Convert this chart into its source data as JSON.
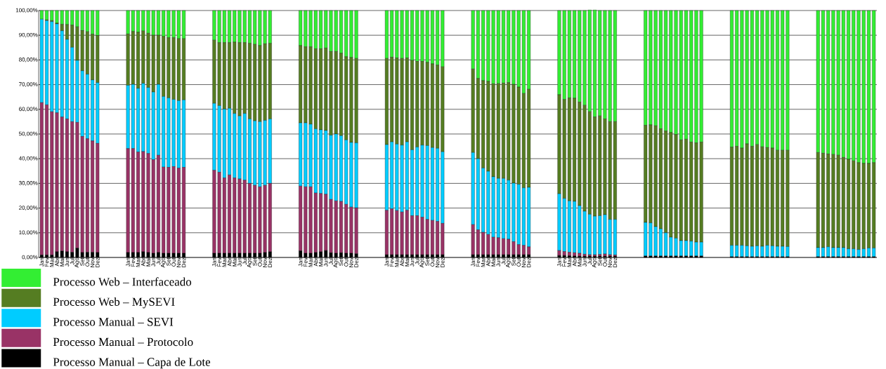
{
  "chart_data": {
    "type": "bar",
    "stacked": true,
    "grid": "y",
    "legend": "bottom left",
    "categories": [
      "Jan",
      "Fev",
      "Mar",
      "Abr",
      "Mai",
      "Jun",
      "Jul",
      "Ago",
      "Set",
      "Out",
      "Nov",
      "Dez",
      null,
      null,
      null,
      null,
      null,
      "Jan",
      "Fev",
      "Mar",
      "Abr",
      "Mai",
      "Jun",
      "Jul",
      "Ago",
      "Set",
      "Out",
      "Nov",
      "Dez",
      null,
      null,
      null,
      null,
      null,
      "Jan",
      "Fev",
      "Mar",
      "Abr",
      "Mai",
      "Jun",
      "Jul",
      "Ago",
      "Set",
      "Out",
      "Nov",
      "Dez",
      null,
      null,
      null,
      null,
      null,
      "Jan",
      "Fev",
      "Mar",
      "Abr",
      "Mai",
      "Jun",
      "Jul",
      "Ago",
      "Set",
      "Out",
      "Nov",
      "Dez",
      null,
      null,
      null,
      null,
      null,
      "Jan",
      "Fev",
      "Mar",
      "Abr",
      "Mai",
      "Jun",
      "Jul",
      "Ago",
      "Set",
      "Out",
      "Nov",
      "Dez",
      null,
      null,
      null,
      null,
      null,
      "Jan",
      "Fev",
      "Mar",
      "Abr",
      "Mai",
      "Jun",
      "Jul",
      "Ago",
      "Set",
      "Out",
      "Nov",
      "Dez",
      null,
      null,
      null,
      null,
      null,
      "Jan",
      "Fev",
      "Mar",
      "Abr",
      "Mai",
      "Jun",
      "Jul",
      "Ago",
      "Set",
      "Out",
      "Nov",
      "Dez",
      null,
      null,
      null,
      null,
      null,
      null,
      null,
      null,
      null,
      null,
      null,
      null,
      null,
      null,
      null,
      null,
      null,
      null,
      null,
      null,
      null,
      null,
      null,
      null,
      null,
      null,
      null,
      null,
      null,
      null,
      null,
      null,
      null,
      null,
      null,
      null,
      null,
      null,
      null,
      null,
      null,
      null,
      null,
      null,
      null,
      null,
      null,
      null,
      null,
      null,
      null
    ],
    "ylim": [
      0,
      100
    ],
    "yticks": [
      {
        "value": 0,
        "label": "0,00%"
      },
      {
        "value": 10,
        "label": "10,00%"
      },
      {
        "value": 20,
        "label": "20,00%"
      },
      {
        "value": 30,
        "label": "30,00%"
      },
      {
        "value": 40,
        "label": "40,00%"
      },
      {
        "value": 50,
        "label": "50,00%"
      },
      {
        "value": 60,
        "label": "60,00%"
      },
      {
        "value": 70,
        "label": "70,00%"
      },
      {
        "value": 80,
        "label": "80,00%"
      },
      {
        "value": 90,
        "label": "90,00%"
      },
      {
        "value": 100,
        "label": "100,00%"
      }
    ],
    "series": [
      {
        "name": "Processo Manual – Capa de Lote",
        "color": "#000000",
        "values": [
          1,
          1,
          1,
          2.3,
          2.6,
          2.3,
          2.1,
          3.8,
          2,
          2.1,
          2.1,
          2,
          null,
          null,
          null,
          null,
          null,
          2,
          2,
          2,
          2.3,
          2,
          1.7,
          2,
          1.7,
          1.7,
          1.7,
          1.7,
          1.7,
          null,
          null,
          null,
          null,
          null,
          1.7,
          1.7,
          1.7,
          1.7,
          1.7,
          1.7,
          1.7,
          1.7,
          1.7,
          1.7,
          2,
          2.3,
          null,
          null,
          null,
          null,
          null,
          2.7,
          1.7,
          1.7,
          2,
          2.3,
          2.8,
          1.9,
          1.7,
          1.9,
          1.7,
          1.7,
          1.5,
          null,
          null,
          null,
          null,
          null,
          1.1,
          1.1,
          1.1,
          1.1,
          1.1,
          1.1,
          1.1,
          1.1,
          1.1,
          1.1,
          1.1,
          1.1,
          null,
          null,
          null,
          null,
          null,
          1.1,
          1.1,
          1.1,
          1.1,
          1.1,
          1.1,
          1.1,
          1.1,
          1.1,
          1.1,
          1.1,
          1.1,
          null,
          null,
          null,
          null,
          null,
          0.8,
          0.8,
          0.7,
          0.6,
          0.5,
          0.5,
          0.5,
          0.5,
          0.5,
          0.5,
          0.5,
          0.5,
          null,
          null,
          null,
          null,
          null,
          0.6,
          0.6,
          0.6,
          0.6,
          0.6,
          0.6,
          0.6,
          0.6,
          0.6,
          0.6,
          0.6,
          0.6,
          null,
          null,
          null,
          null,
          null,
          0.3,
          0.3,
          0.3,
          0.3,
          0.3,
          0.3,
          0.3,
          0.3,
          0.3,
          0.3,
          0.3,
          0.3,
          null,
          null,
          null,
          null,
          null,
          0.3,
          0.3,
          0.3,
          0.3,
          0.3,
          0.3,
          0.3,
          0.3,
          0.3,
          0.3,
          0.3,
          0.3
        ]
      },
      {
        "name": "Processo Manual – Protocolo",
        "color": "#993366",
        "values": [
          61.7,
          60.8,
          58,
          56.3,
          54.3,
          53.8,
          52.9,
          50.9,
          47,
          46,
          45.1,
          44.2,
          null,
          null,
          null,
          null,
          null,
          42.1,
          42.1,
          40.7,
          40.6,
          40.1,
          37.9,
          39.4,
          34.9,
          34.8,
          35.1,
          34.5,
          34.8,
          null,
          null,
          null,
          null,
          null,
          33.6,
          32.8,
          30.5,
          31.7,
          30.5,
          30.1,
          29.6,
          28.3,
          27.5,
          26.9,
          27.2,
          27.7,
          null,
          null,
          null,
          null,
          null,
          26.2,
          26.9,
          26.9,
          24.1,
          23.6,
          22.8,
          21.6,
          21.2,
          20.8,
          19.8,
          18.7,
          18.6,
          null,
          null,
          null,
          null,
          null,
          18,
          18.6,
          17.9,
          17.3,
          18,
          15.8,
          15.8,
          15.2,
          14.3,
          13.9,
          13.5,
          12.7,
          null,
          null,
          null,
          null,
          null,
          12.2,
          10.1,
          9.1,
          8.2,
          7.1,
          6.9,
          6.5,
          6.3,
          5.3,
          4.1,
          3.8,
          3.2,
          null,
          null,
          null,
          null,
          null,
          2,
          1.6,
          1.4,
          1.3,
          1.2,
          0.8,
          0.6,
          0.6,
          0.7,
          0.9,
          0.6,
          0.5,
          null,
          null,
          null,
          null,
          null,
          0,
          0,
          0,
          0,
          0,
          0,
          0,
          0,
          0,
          0,
          0,
          0,
          null,
          null,
          null,
          null,
          null,
          0,
          0,
          0,
          0,
          0,
          0,
          0,
          0,
          0,
          0,
          0,
          0,
          null,
          null,
          null,
          null,
          null,
          0,
          0,
          0,
          0,
          0,
          0,
          0,
          0,
          0,
          0,
          0,
          0
        ]
      },
      {
        "name": "Processo Manual – SEVI",
        "color": "#00ccff",
        "values": [
          33.8,
          34.1,
          36.5,
          36,
          34.9,
          32.2,
          30.1,
          25.1,
          26.6,
          26.1,
          24.7,
          24.6,
          null,
          null,
          null,
          null,
          null,
          25.6,
          26,
          25.8,
          27.6,
          26.7,
          27.4,
          28.7,
          28.6,
          28.1,
          27.2,
          27.3,
          27.3,
          null,
          null,
          null,
          null,
          null,
          27.1,
          27,
          27.9,
          27,
          26.1,
          25.5,
          27,
          26.1,
          26.1,
          26.4,
          26.3,
          26.1,
          null,
          null,
          null,
          null,
          null,
          25.6,
          25.9,
          25.4,
          26,
          25.8,
          25.8,
          26,
          27.1,
          26.6,
          26.1,
          26.2,
          26.3,
          null,
          null,
          null,
          null,
          null,
          26.6,
          27.1,
          26.9,
          27.1,
          27.7,
          26.7,
          27.8,
          29.2,
          29.9,
          29.5,
          29.6,
          29,
          null,
          null,
          null,
          null,
          null,
          29.2,
          28.8,
          26,
          25.6,
          24.5,
          24,
          24.4,
          23.9,
          23.7,
          24.4,
          23.3,
          24.1,
          null,
          null,
          null,
          null,
          null,
          23,
          21.5,
          20.8,
          20.8,
          19.3,
          17.4,
          16.4,
          15.6,
          15.7,
          15.9,
          14.3,
          14.4,
          null,
          null,
          null,
          null,
          null,
          13.6,
          13.4,
          11.9,
          11,
          9.4,
          7.6,
          7.2,
          6.2,
          6.2,
          6,
          5.6,
          5.6,
          null,
          null,
          null,
          null,
          null,
          4.6,
          4.6,
          4.6,
          4.4,
          4.2,
          4.4,
          4.2,
          4.6,
          4.4,
          4.2,
          4.2,
          4.1,
          null,
          null,
          null,
          null,
          null,
          3.7,
          3.7,
          4,
          3.7,
          3.7,
          3.7,
          3.2,
          3.2,
          2.9,
          3.2,
          3.5,
          3.5
        ]
      },
      {
        "name": "Processo Web – MySEVI",
        "color": "#557d22",
        "values": [
          0,
          0.3,
          0.4,
          0.3,
          2.6,
          6,
          9,
          13.6,
          16.3,
          17.2,
          18.5,
          19.1,
          null,
          null,
          null,
          null,
          null,
          20.8,
          21.4,
          22.7,
          21.2,
          22,
          23,
          19.9,
          24.3,
          24.4,
          25,
          25.1,
          24.8,
          null,
          null,
          null,
          null,
          null,
          25.6,
          25.5,
          26.9,
          26.6,
          28.9,
          29.7,
          28.7,
          30.6,
          31,
          30.8,
          31,
          30.6,
          null,
          null,
          null,
          null,
          null,
          31.3,
          30.8,
          31.3,
          32.4,
          32.8,
          33.4,
          33.9,
          33.4,
          33.4,
          33.7,
          34.4,
          34.2,
          null,
          null,
          null,
          null,
          null,
          34.9,
          34.3,
          34.9,
          35.1,
          34,
          36.2,
          34.7,
          33.9,
          33.7,
          33.9,
          33.7,
          34.4,
          null,
          null,
          null,
          null,
          null,
          33.8,
          32.5,
          35.4,
          36.4,
          37.6,
          38.4,
          38.6,
          39.5,
          40,
          39.4,
          38.2,
          39.7,
          null,
          null,
          null,
          null,
          null,
          40.1,
          40.1,
          41.7,
          41.8,
          41.9,
          42.9,
          41.5,
          40.2,
          40.4,
          38.8,
          39.6,
          39.6,
          null,
          null,
          null,
          null,
          null,
          39.3,
          39.7,
          40.8,
          40.5,
          41.2,
          42.4,
          42,
          40.8,
          41.1,
          40.1,
          40.2,
          40.5,
          null,
          null,
          null,
          null,
          null,
          39.8,
          40.1,
          39.4,
          41.3,
          40.5,
          41,
          40.3,
          39.6,
          39.6,
          38.9,
          38.9,
          39,
          null,
          null,
          null,
          null,
          null,
          38.5,
          38.2,
          37.6,
          37.7,
          37.4,
          36.5,
          36.3,
          35.6,
          35.2,
          34.6,
          34.3,
          34.6
        ]
      },
      {
        "name": "Processo Web – Interfaceado",
        "color": "#33ee33",
        "values": [
          3.5,
          3.8,
          4.1,
          5.1,
          5.6,
          5.7,
          5.9,
          6.6,
          8.1,
          8.6,
          9.6,
          10.1,
          null,
          null,
          null,
          null,
          null,
          9.5,
          8.5,
          8.8,
          8.3,
          9.2,
          10,
          10,
          10.5,
          11,
          11,
          11.4,
          11.4,
          null,
          null,
          null,
          null,
          null,
          12,
          13,
          13,
          13,
          12.8,
          13,
          13,
          13.3,
          13.7,
          14.2,
          13.5,
          13.3,
          null,
          null,
          null,
          null,
          null,
          14.2,
          14.7,
          14.7,
          15.5,
          15.5,
          15.2,
          16.6,
          16.6,
          17.3,
          18.7,
          19,
          19.4,
          null,
          null,
          null,
          null,
          null,
          19.4,
          18.9,
          19.2,
          19.4,
          19.2,
          20.2,
          20.6,
          20.6,
          21,
          21.6,
          22.1,
          22.8,
          null,
          null,
          null,
          null,
          null,
          23.7,
          27.5,
          28.4,
          28.7,
          29.7,
          29.6,
          29.4,
          29.2,
          29.9,
          31,
          33.6,
          31.9,
          null,
          null,
          null,
          null,
          null,
          34.1,
          36,
          35.4,
          35.5,
          37.1,
          38.4,
          41.2,
          43.3,
          42.7,
          43.9,
          45,
          45,
          null,
          null,
          null,
          null,
          null,
          46.5,
          46.3,
          46.7,
          47.9,
          48.8,
          49.4,
          50.2,
          52.4,
          52.1,
          53.3,
          53.6,
          53.3,
          null,
          null,
          null,
          null,
          null,
          55.3,
          55,
          55.7,
          54,
          55,
          54.3,
          55.2,
          55.5,
          55.7,
          56.6,
          56.6,
          56.6,
          null,
          null,
          null,
          null,
          null,
          57.5,
          57.8,
          58.1,
          58.3,
          58.6,
          59.5,
          60.2,
          60.9,
          61.6,
          61.9,
          61.9,
          61.6
        ]
      }
    ]
  }
}
